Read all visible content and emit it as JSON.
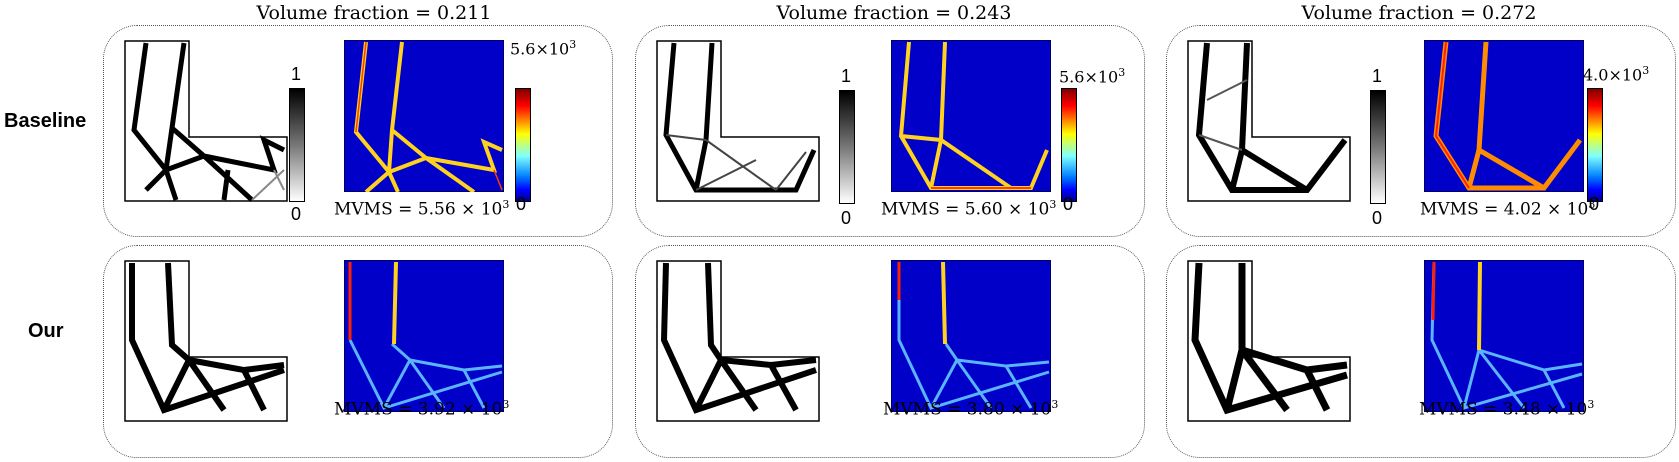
{
  "columns": [
    {
      "title": "Volume fraction = 0.211",
      "baseline_colorbar_max": "5.6×10",
      "baseline_mvms": "MVMS = 5.56 × 10",
      "our_mvms": "MVMS = 3.92 × 10"
    },
    {
      "title": "Volume fraction = 0.243",
      "baseline_colorbar_max": "5.6×10",
      "baseline_mvms": "MVMS = 5.60 × 10",
      "our_mvms": "MVMS = 3.80 × 10"
    },
    {
      "title": "Volume fraction = 0.272",
      "baseline_colorbar_max": "4.0×10",
      "baseline_mvms": "MVMS = 4.02 × 10",
      "our_mvms": "MVMS = 3.48 × 10"
    }
  ],
  "rows": {
    "baseline": "Baseline",
    "our": "Our"
  },
  "exponent": "3",
  "density_colorbar": {
    "max": "1",
    "min": "0"
  },
  "stress_colorbar_min": "0",
  "colors": {
    "stress_background": "#0000c8",
    "structure": "#000000"
  }
}
